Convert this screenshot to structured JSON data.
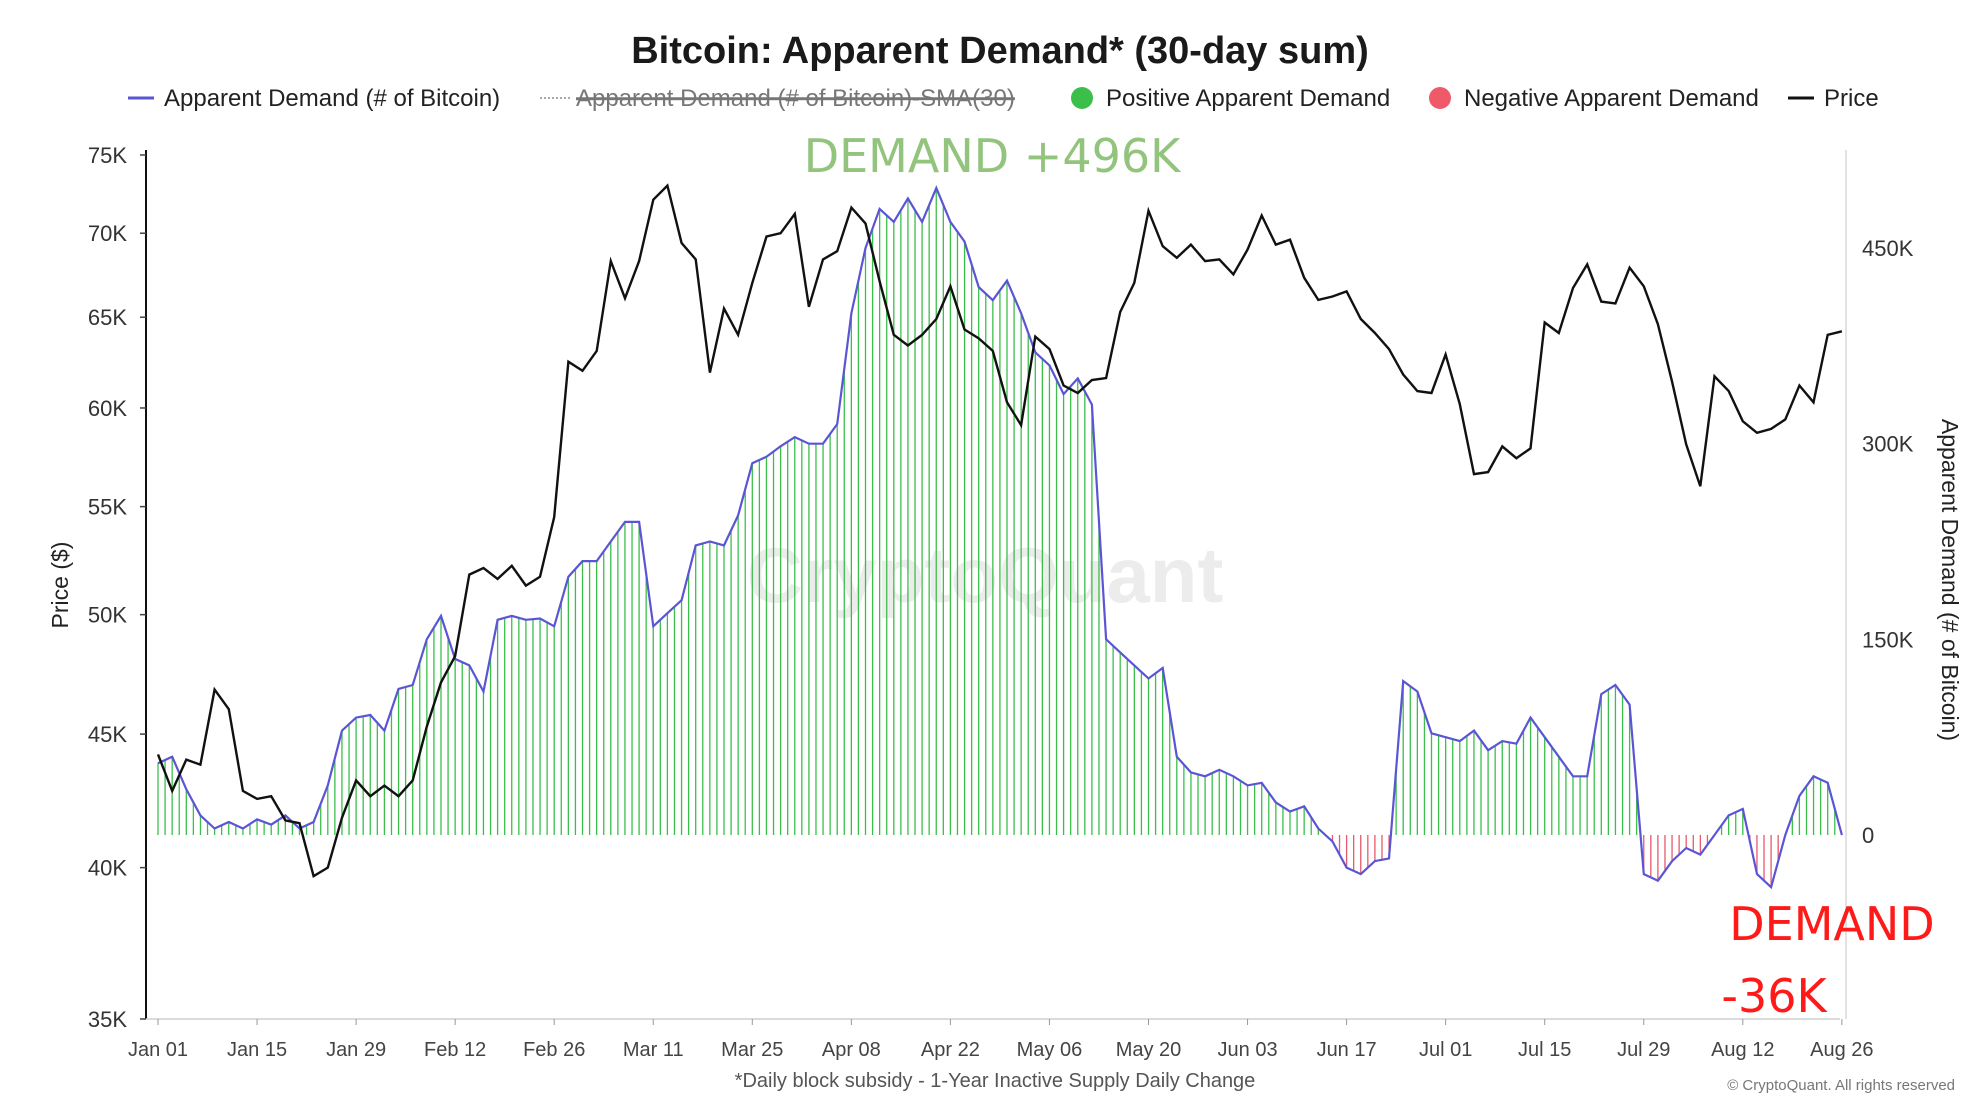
{
  "chart_data": {
    "type": "bar",
    "title": "Bitcoin: Apparent Demand* (30-day sum)",
    "legend": {
      "placement": "top",
      "items": [
        {
          "label": "Apparent Demand (# of Bitcoin)",
          "color": "#5b55d6",
          "style": "line"
        },
        {
          "label": "Apparent Demand (# of Bitcoin)-SMA(30)",
          "color": "#aaaaaa",
          "style": "dotted-hidden"
        },
        {
          "label": "Positive Apparent Demand",
          "color": "#3bbf4a",
          "style": "dot"
        },
        {
          "label": "Negative Apparent Demand",
          "color": "#f0596a",
          "style": "dot"
        },
        {
          "label": "Price",
          "color": "#111111",
          "style": "line"
        }
      ]
    },
    "ylabel_left": "Price ($)",
    "ylabel_right": "Apparent Demand (# of Bitcoin)",
    "left_axis": {
      "scale": "log",
      "range": [
        35000,
        75000
      ],
      "ticks": [
        75000,
        70000,
        65000,
        60000,
        55000,
        50000,
        45000,
        40000,
        35000
      ],
      "tick_labels": [
        "75K",
        "70K",
        "65K",
        "60K",
        "55K",
        "50K",
        "45K",
        "40K",
        "35K"
      ]
    },
    "right_axis": {
      "scale": "linear",
      "range": [
        -115000,
        520000
      ],
      "ticks": [
        450000,
        300000,
        150000,
        0
      ],
      "tick_labels": [
        "450K",
        "300K",
        "150K",
        "0"
      ]
    },
    "x_axis": {
      "range": [
        "2024-01-01",
        "2024-08-28"
      ],
      "ticks": [
        "2024-01-01",
        "2024-01-15",
        "2024-01-29",
        "2024-02-12",
        "2024-02-26",
        "2024-03-11",
        "2024-03-25",
        "2024-04-08",
        "2024-04-22",
        "2024-05-06",
        "2024-05-20",
        "2024-06-03",
        "2024-06-17",
        "2024-07-01",
        "2024-07-15",
        "2024-07-29",
        "2024-08-12",
        "2024-08-26"
      ],
      "tick_labels": [
        "Jan 01",
        "Jan 15",
        "Jan 29",
        "Feb 12",
        "Feb 26",
        "Mar 11",
        "Mar 25",
        "Apr 08",
        "Apr 22",
        "May 06",
        "May 20",
        "Jun 03",
        "Jun 17",
        "Jul 01",
        "Jul 15",
        "Jul 29",
        "Aug 12",
        "Aug 26"
      ]
    },
    "demand_series": {
      "name": "Apparent Demand (# of Bitcoin)",
      "points": [
        [
          "2024-01-01",
          55000
        ],
        [
          "2024-01-03",
          60000
        ],
        [
          "2024-01-05",
          35000
        ],
        [
          "2024-01-07",
          15000
        ],
        [
          "2024-01-09",
          5000
        ],
        [
          "2024-01-11",
          10000
        ],
        [
          "2024-01-13",
          5000
        ],
        [
          "2024-01-15",
          12000
        ],
        [
          "2024-01-17",
          8000
        ],
        [
          "2024-01-19",
          15000
        ],
        [
          "2024-01-21",
          5000
        ],
        [
          "2024-01-23",
          10000
        ],
        [
          "2024-01-25",
          38000
        ],
        [
          "2024-01-27",
          80000
        ],
        [
          "2024-01-29",
          90000
        ],
        [
          "2024-01-31",
          92000
        ],
        [
          "2024-02-02",
          80000
        ],
        [
          "2024-02-04",
          112000
        ],
        [
          "2024-02-06",
          115000
        ],
        [
          "2024-02-08",
          150000
        ],
        [
          "2024-02-10",
          168000
        ],
        [
          "2024-02-12",
          135000
        ],
        [
          "2024-02-14",
          130000
        ],
        [
          "2024-02-16",
          110000
        ],
        [
          "2024-02-18",
          165000
        ],
        [
          "2024-02-20",
          168000
        ],
        [
          "2024-02-22",
          165000
        ],
        [
          "2024-02-24",
          166000
        ],
        [
          "2024-02-26",
          160000
        ],
        [
          "2024-02-28",
          198000
        ],
        [
          "2024-03-01",
          210000
        ],
        [
          "2024-03-03",
          210000
        ],
        [
          "2024-03-05",
          225000
        ],
        [
          "2024-03-07",
          240000
        ],
        [
          "2024-03-09",
          240000
        ],
        [
          "2024-03-11",
          160000
        ],
        [
          "2024-03-13",
          170000
        ],
        [
          "2024-03-15",
          180000
        ],
        [
          "2024-03-17",
          222000
        ],
        [
          "2024-03-19",
          225000
        ],
        [
          "2024-03-21",
          222000
        ],
        [
          "2024-03-23",
          245000
        ],
        [
          "2024-03-25",
          285000
        ],
        [
          "2024-03-27",
          290000
        ],
        [
          "2024-03-29",
          298000
        ],
        [
          "2024-03-31",
          305000
        ],
        [
          "2024-04-02",
          300000
        ],
        [
          "2024-04-04",
          300000
        ],
        [
          "2024-04-06",
          315000
        ],
        [
          "2024-04-08",
          400000
        ],
        [
          "2024-04-10",
          450000
        ],
        [
          "2024-04-12",
          480000
        ],
        [
          "2024-04-14",
          470000
        ],
        [
          "2024-04-16",
          488000
        ],
        [
          "2024-04-18",
          470000
        ],
        [
          "2024-04-20",
          496000
        ],
        [
          "2024-04-22",
          470000
        ],
        [
          "2024-04-24",
          455000
        ],
        [
          "2024-04-26",
          420000
        ],
        [
          "2024-04-28",
          410000
        ],
        [
          "2024-04-30",
          425000
        ],
        [
          "2024-05-02",
          400000
        ],
        [
          "2024-05-04",
          370000
        ],
        [
          "2024-05-06",
          360000
        ],
        [
          "2024-05-08",
          338000
        ],
        [
          "2024-05-10",
          350000
        ],
        [
          "2024-05-12",
          330000
        ],
        [
          "2024-05-14",
          150000
        ],
        [
          "2024-05-16",
          140000
        ],
        [
          "2024-05-18",
          130000
        ],
        [
          "2024-05-20",
          120000
        ],
        [
          "2024-05-22",
          128000
        ],
        [
          "2024-05-24",
          60000
        ],
        [
          "2024-05-26",
          48000
        ],
        [
          "2024-05-28",
          45000
        ],
        [
          "2024-05-30",
          50000
        ],
        [
          "2024-06-01",
          45000
        ],
        [
          "2024-06-03",
          38000
        ],
        [
          "2024-06-05",
          40000
        ],
        [
          "2024-06-07",
          25000
        ],
        [
          "2024-06-09",
          18000
        ],
        [
          "2024-06-11",
          22000
        ],
        [
          "2024-06-13",
          5000
        ],
        [
          "2024-06-15",
          -5000
        ],
        [
          "2024-06-17",
          -25000
        ],
        [
          "2024-06-19",
          -30000
        ],
        [
          "2024-06-21",
          -20000
        ],
        [
          "2024-06-23",
          -18000
        ],
        [
          "2024-06-25",
          118000
        ],
        [
          "2024-06-27",
          110000
        ],
        [
          "2024-06-29",
          78000
        ],
        [
          "2024-07-01",
          75000
        ],
        [
          "2024-07-03",
          72000
        ],
        [
          "2024-07-05",
          80000
        ],
        [
          "2024-07-07",
          65000
        ],
        [
          "2024-07-09",
          72000
        ],
        [
          "2024-07-11",
          70000
        ],
        [
          "2024-07-13",
          90000
        ],
        [
          "2024-07-15",
          75000
        ],
        [
          "2024-07-17",
          60000
        ],
        [
          "2024-07-19",
          45000
        ],
        [
          "2024-07-21",
          45000
        ],
        [
          "2024-07-23",
          108000
        ],
        [
          "2024-07-25",
          115000
        ],
        [
          "2024-07-27",
          100000
        ],
        [
          "2024-07-29",
          -30000
        ],
        [
          "2024-07-31",
          -35000
        ],
        [
          "2024-08-02",
          -20000
        ],
        [
          "2024-08-04",
          -10000
        ],
        [
          "2024-08-06",
          -15000
        ],
        [
          "2024-08-08",
          0
        ],
        [
          "2024-08-10",
          15000
        ],
        [
          "2024-08-12",
          20000
        ],
        [
          "2024-08-14",
          -30000
        ],
        [
          "2024-08-16",
          -40000
        ],
        [
          "2024-08-18",
          0
        ],
        [
          "2024-08-20",
          30000
        ],
        [
          "2024-08-22",
          45000
        ],
        [
          "2024-08-24",
          40000
        ],
        [
          "2024-08-26",
          0
        ]
      ]
    },
    "price_series": {
      "name": "Price",
      "points": [
        [
          "2024-01-01",
          44200
        ],
        [
          "2024-01-03",
          42800
        ],
        [
          "2024-01-05",
          44000
        ],
        [
          "2024-01-07",
          43800
        ],
        [
          "2024-01-09",
          46800
        ],
        [
          "2024-01-11",
          46000
        ],
        [
          "2024-01-13",
          42800
        ],
        [
          "2024-01-15",
          42500
        ],
        [
          "2024-01-17",
          42600
        ],
        [
          "2024-01-19",
          41700
        ],
        [
          "2024-01-21",
          41600
        ],
        [
          "2024-01-23",
          39700
        ],
        [
          "2024-01-25",
          40000
        ],
        [
          "2024-01-27",
          41800
        ],
        [
          "2024-01-29",
          43200
        ],
        [
          "2024-01-31",
          42600
        ],
        [
          "2024-02-02",
          43000
        ],
        [
          "2024-02-04",
          42600
        ],
        [
          "2024-02-06",
          43200
        ],
        [
          "2024-02-08",
          45300
        ],
        [
          "2024-02-10",
          47100
        ],
        [
          "2024-02-12",
          48200
        ],
        [
          "2024-02-14",
          51800
        ],
        [
          "2024-02-16",
          52100
        ],
        [
          "2024-02-18",
          51600
        ],
        [
          "2024-02-20",
          52200
        ],
        [
          "2024-02-22",
          51300
        ],
        [
          "2024-02-24",
          51700
        ],
        [
          "2024-02-26",
          54500
        ],
        [
          "2024-02-28",
          62500
        ],
        [
          "2024-03-01",
          62000
        ],
        [
          "2024-03-03",
          63100
        ],
        [
          "2024-03-05",
          68300
        ],
        [
          "2024-03-07",
          66100
        ],
        [
          "2024-03-09",
          68300
        ],
        [
          "2024-03-11",
          72100
        ],
        [
          "2024-03-13",
          73000
        ],
        [
          "2024-03-15",
          69400
        ],
        [
          "2024-03-17",
          68400
        ],
        [
          "2024-03-19",
          61900
        ],
        [
          "2024-03-21",
          65500
        ],
        [
          "2024-03-23",
          64000
        ],
        [
          "2024-03-25",
          67000
        ],
        [
          "2024-03-27",
          69800
        ],
        [
          "2024-03-29",
          70000
        ],
        [
          "2024-03-31",
          71200
        ],
        [
          "2024-04-02",
          65600
        ],
        [
          "2024-04-04",
          68400
        ],
        [
          "2024-04-06",
          68900
        ],
        [
          "2024-04-08",
          71600
        ],
        [
          "2024-04-10",
          70600
        ],
        [
          "2024-04-12",
          67100
        ],
        [
          "2024-04-14",
          64000
        ],
        [
          "2024-04-16",
          63400
        ],
        [
          "2024-04-18",
          64000
        ],
        [
          "2024-04-20",
          64900
        ],
        [
          "2024-04-22",
          66800
        ],
        [
          "2024-04-24",
          64300
        ],
        [
          "2024-04-26",
          63800
        ],
        [
          "2024-04-28",
          63100
        ],
        [
          "2024-04-30",
          60300
        ],
        [
          "2024-05-02",
          59100
        ],
        [
          "2024-05-04",
          63900
        ],
        [
          "2024-05-06",
          63200
        ],
        [
          "2024-05-08",
          61200
        ],
        [
          "2024-05-10",
          60800
        ],
        [
          "2024-05-12",
          61500
        ],
        [
          "2024-05-14",
          61600
        ],
        [
          "2024-05-16",
          65300
        ],
        [
          "2024-05-18",
          67000
        ],
        [
          "2024-05-20",
          71400
        ],
        [
          "2024-05-22",
          69200
        ],
        [
          "2024-05-24",
          68500
        ],
        [
          "2024-05-26",
          69300
        ],
        [
          "2024-05-28",
          68300
        ],
        [
          "2024-05-30",
          68400
        ],
        [
          "2024-06-01",
          67500
        ],
        [
          "2024-06-03",
          69000
        ],
        [
          "2024-06-05",
          71100
        ],
        [
          "2024-06-07",
          69300
        ],
        [
          "2024-06-09",
          69600
        ],
        [
          "2024-06-11",
          67300
        ],
        [
          "2024-06-13",
          66000
        ],
        [
          "2024-06-15",
          66200
        ],
        [
          "2024-06-17",
          66500
        ],
        [
          "2024-06-19",
          64900
        ],
        [
          "2024-06-21",
          64100
        ],
        [
          "2024-06-23",
          63200
        ],
        [
          "2024-06-25",
          61800
        ],
        [
          "2024-06-27",
          60900
        ],
        [
          "2024-06-29",
          60800
        ],
        [
          "2024-07-01",
          62900
        ],
        [
          "2024-07-03",
          60200
        ],
        [
          "2024-07-05",
          56600
        ],
        [
          "2024-07-07",
          56700
        ],
        [
          "2024-07-09",
          58000
        ],
        [
          "2024-07-11",
          57400
        ],
        [
          "2024-07-13",
          57900
        ],
        [
          "2024-07-15",
          64700
        ],
        [
          "2024-07-17",
          64100
        ],
        [
          "2024-07-19",
          66700
        ],
        [
          "2024-07-21",
          68100
        ],
        [
          "2024-07-23",
          65900
        ],
        [
          "2024-07-25",
          65800
        ],
        [
          "2024-07-27",
          67900
        ],
        [
          "2024-07-29",
          66800
        ],
        [
          "2024-07-31",
          64600
        ],
        [
          "2024-08-02",
          61400
        ],
        [
          "2024-08-04",
          58100
        ],
        [
          "2024-08-06",
          56000
        ],
        [
          "2024-08-08",
          61700
        ],
        [
          "2024-08-10",
          60900
        ],
        [
          "2024-08-12",
          59300
        ],
        [
          "2024-08-14",
          58700
        ],
        [
          "2024-08-16",
          58900
        ],
        [
          "2024-08-18",
          59400
        ],
        [
          "2024-08-20",
          61200
        ],
        [
          "2024-08-22",
          60300
        ],
        [
          "2024-08-24",
          64000
        ],
        [
          "2024-08-26",
          64200
        ]
      ]
    },
    "annotations": [
      {
        "text": "DEMAND +496K",
        "color": "#92c47d",
        "at": [
          "2024-04-08",
          496000
        ]
      },
      {
        "text": "DEMAND",
        "color": "#ff1a1a",
        "at": [
          "2024-08-22",
          -50000
        ]
      },
      {
        "text": "-36K",
        "color": "#ff1a1a",
        "at": [
          "2024-08-20",
          -88000
        ]
      }
    ],
    "footnote": "*Daily block subsidy - 1-Year Inactive Supply Daily Change",
    "credit": "© CryptoQuant. All rights reserved",
    "watermark": "CryptoQuant",
    "grid": false
  }
}
